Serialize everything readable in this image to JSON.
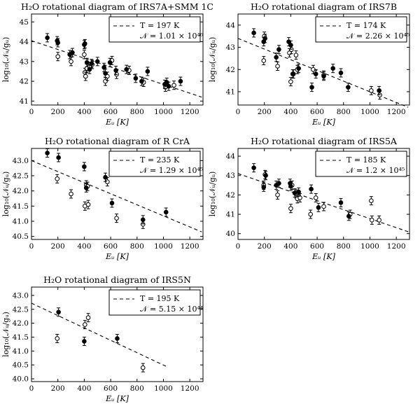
{
  "chart_data": [
    {
      "type": "scatter",
      "title": "H₂O rotational diagram of IRS7A+SMM 1C",
      "xlabel": "Eᵤ [K]",
      "ylabel": "log₁₀(𝒩ᵤ/gᵤ)",
      "xlim": [
        0,
        1300
      ],
      "ylim": [
        40.8,
        45.4
      ],
      "xticks": [
        0,
        200,
        400,
        600,
        800,
        1000,
        1200
      ],
      "yticks": [
        41,
        42,
        43,
        44,
        45
      ],
      "legend": {
        "placement": "top-right",
        "temperature": "T = 197 K",
        "column": "𝒩 = 1.01 × 10⁴⁶"
      },
      "fit": {
        "x": [
          0,
          1290
        ],
        "y": [
          44.05,
          41.2
        ]
      },
      "filled": {
        "x": [
          120,
          195,
          200,
          290,
          310,
          400,
          405,
          420,
          440,
          455,
          500,
          550,
          560,
          595,
          640,
          720,
          790,
          835,
          880,
          1010,
          1025,
          1040,
          1130
        ],
        "y": [
          44.2,
          44.05,
          43.95,
          43.35,
          43.45,
          43.85,
          43.9,
          42.95,
          42.6,
          42.9,
          43.0,
          42.7,
          42.4,
          42.95,
          42.55,
          42.6,
          42.15,
          42.0,
          42.5,
          41.85,
          41.95,
          41.75,
          42.0
        ]
      },
      "open": {
        "x": [
          200,
          300,
          400,
          405,
          410,
          420,
          440,
          460,
          560,
          575,
          610,
          645,
          740,
          850,
          1015,
          1080
        ],
        "y": [
          43.25,
          43.0,
          43.35,
          42.45,
          42.25,
          42.65,
          42.75,
          42.85,
          42.0,
          42.25,
          43.05,
          42.35,
          42.55,
          41.95,
          41.7,
          41.8
        ]
      }
    },
    {
      "type": "scatter",
      "title": "H₂O rotational diagram of IRS7B",
      "xlabel": "Eᵤ [K]",
      "ylabel": "log₁₀(𝒩ᵤ/gᵤ)",
      "xlim": [
        0,
        1300
      ],
      "ylim": [
        40.4,
        44.5
      ],
      "xticks": [
        0,
        200,
        400,
        600,
        800,
        1000,
        1200
      ],
      "yticks": [
        41,
        42,
        43,
        44
      ],
      "legend": {
        "placement": "top-right",
        "temperature": "T = 174 K",
        "column": "𝒩 = 2.26 × 10⁴⁵"
      },
      "fit": {
        "x": [
          0,
          1290
        ],
        "y": [
          43.4,
          40.3
        ]
      },
      "filled": {
        "x": [
          120,
          195,
          205,
          290,
          310,
          385,
          400,
          415,
          460,
          560,
          590,
          650,
          720,
          780,
          835,
          1070
        ],
        "y": [
          43.65,
          43.25,
          43.4,
          42.55,
          42.9,
          43.25,
          43.1,
          41.8,
          42.05,
          41.2,
          41.8,
          41.7,
          42.05,
          41.85,
          41.2,
          41.05
        ]
      },
      "open": {
        "x": [
          195,
          200,
          300,
          390,
          400,
          405,
          420,
          440,
          450,
          570,
          650,
          1010,
          1075
        ],
        "y": [
          42.4,
          43.5,
          42.15,
          42.75,
          41.45,
          42.9,
          41.8,
          42.65,
          42.0,
          42.0,
          41.75,
          41.05,
          40.85
        ]
      }
    },
    {
      "type": "scatter",
      "title": "H₂O rotational diagram of R CrA",
      "xlabel": "Eᵤ [K]",
      "ylabel": "log₁₀(𝒩ᵤ/gᵤ)",
      "xlim": [
        0,
        1300
      ],
      "ylim": [
        40.4,
        43.4
      ],
      "xticks": [
        0,
        200,
        400,
        600,
        800,
        1000,
        1200
      ],
      "yticks": [
        40.5,
        41.0,
        41.5,
        42.0,
        42.5,
        43.0
      ],
      "ytick_labels": [
        "40.5",
        "41.0",
        "41.5",
        "42.0",
        "42.5",
        "43.0"
      ],
      "legend": {
        "placement": "top-right",
        "temperature": "T = 235 K",
        "column": "𝒩 = 1.29 × 10⁴⁵"
      },
      "fit": {
        "x": [
          0,
          1290
        ],
        "y": [
          43.0,
          40.65
        ]
      },
      "filled": {
        "x": [
          120,
          205,
          400,
          415,
          560,
          610,
          845,
          1020
        ],
        "y": [
          43.25,
          43.1,
          42.8,
          42.1,
          42.45,
          41.6,
          41.05,
          41.3
        ]
      },
      "open": {
        "x": [
          195,
          300,
          405,
          415,
          425,
          430,
          575,
          645,
          845
        ],
        "y": [
          42.4,
          41.9,
          41.5,
          42.2,
          42.15,
          41.55,
          42.3,
          41.1,
          40.9
        ]
      }
    },
    {
      "type": "scatter",
      "title": "H₂O rotational diagram of IRS5A",
      "xlabel": "Eᵤ [K]",
      "ylabel": "log₁₀(𝒩ᵤ/gᵤ)",
      "xlim": [
        0,
        1300
      ],
      "ylim": [
        39.7,
        44.4
      ],
      "xticks": [
        0,
        200,
        400,
        600,
        800,
        1000,
        1200
      ],
      "yticks": [
        40,
        41,
        42,
        43,
        44
      ],
      "legend": {
        "placement": "top-right",
        "temperature": "T = 185 K",
        "column": "𝒩 = 1.2 × 10⁴⁵"
      },
      "fit": {
        "x": [
          0,
          1290
        ],
        "y": [
          43.1,
          40.1
        ]
      },
      "filled": {
        "x": [
          120,
          195,
          210,
          290,
          310,
          395,
          400,
          430,
          460,
          555,
          610,
          780,
          840
        ],
        "y": [
          43.4,
          42.4,
          43.0,
          42.5,
          42.6,
          42.6,
          42.45,
          42.1,
          42.15,
          42.3,
          41.35,
          41.6,
          40.9
        ]
      },
      "open": {
        "x": [
          195,
          205,
          300,
          400,
          410,
          440,
          450,
          470,
          550,
          590,
          650,
          850,
          1010,
          1015,
          1070
        ],
        "y": [
          42.5,
          43.05,
          42.0,
          41.3,
          42.5,
          42.05,
          41.8,
          41.85,
          41.0,
          41.85,
          41.4,
          41.0,
          41.7,
          40.7,
          40.7
        ]
      }
    },
    {
      "type": "scatter",
      "title": "H₂O rotational diagram of IRS5N",
      "xlabel": "Eᵤ [K]",
      "ylabel": "log₁₀(𝒩ᵤ/gᵤ)",
      "xlim": [
        0,
        1300
      ],
      "ylim": [
        39.9,
        43.3
      ],
      "xticks": [
        0,
        200,
        400,
        600,
        800,
        1000,
        1200
      ],
      "yticks": [
        40.0,
        40.5,
        41.0,
        41.5,
        42.0,
        42.5,
        43.0
      ],
      "ytick_labels": [
        "40.0",
        "40.5",
        "41.0",
        "41.5",
        "42.0",
        "42.5",
        "43.0"
      ],
      "legend": {
        "placement": "top-right",
        "temperature": "T = 195 K",
        "column": "𝒩 = 5.15 × 10⁴⁴"
      },
      "fit": {
        "x": [
          0,
          1020
        ],
        "y": [
          42.72,
          40.45
        ]
      },
      "filled": {
        "x": [
          205,
          400,
          650
        ],
        "y": [
          42.4,
          41.35,
          41.45
        ]
      },
      "open": {
        "x": [
          195,
          405,
          430,
          845
        ],
        "y": [
          41.45,
          41.95,
          42.2,
          40.4
        ]
      }
    }
  ]
}
